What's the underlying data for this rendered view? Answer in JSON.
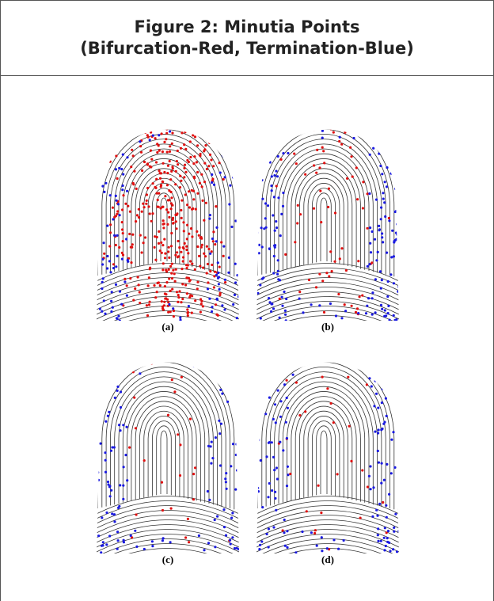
{
  "title": "Figure 2: Minutia Points",
  "subtitle": "(Bifurcation-Red, Termination-Blue)",
  "panels": [
    {
      "label": "(a)"
    },
    {
      "label": "(b)"
    },
    {
      "label": "(c)"
    },
    {
      "label": "(d)"
    }
  ]
}
